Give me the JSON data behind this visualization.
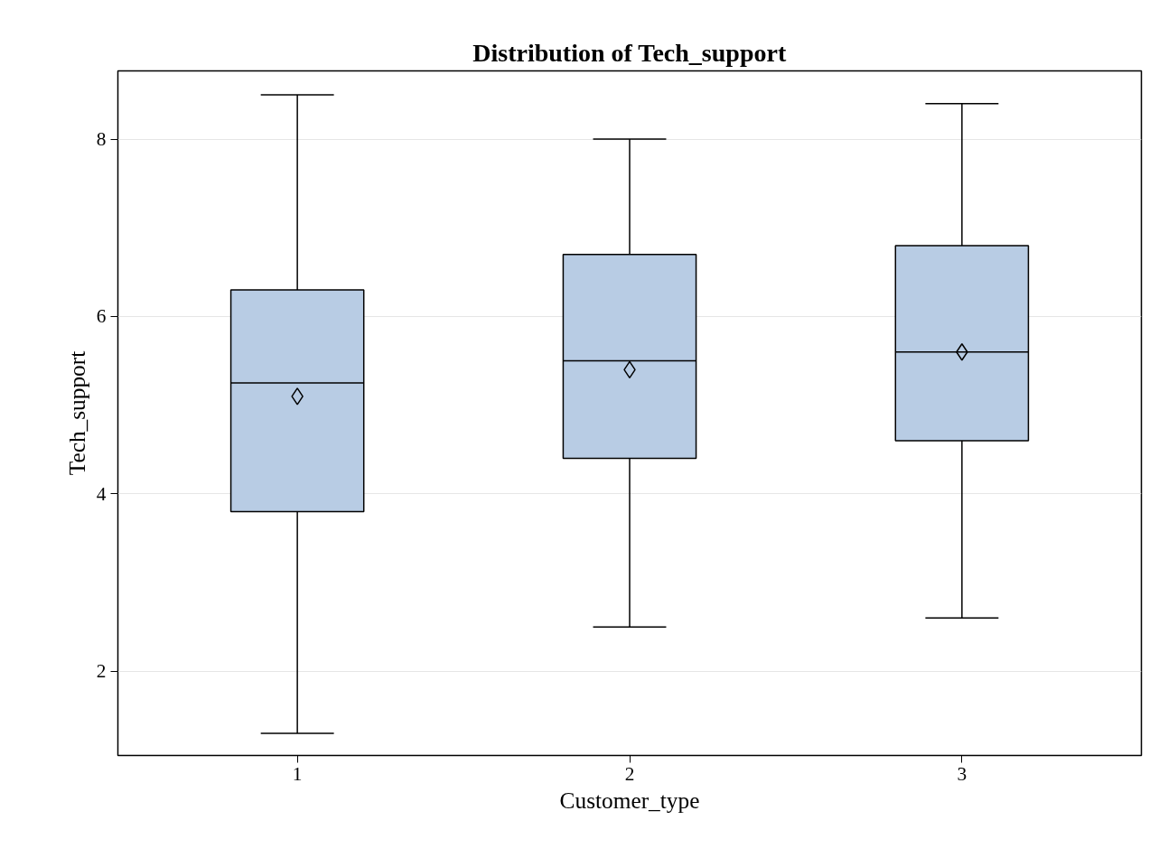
{
  "chart_data": {
    "type": "box",
    "title": "Distribution of Tech_support",
    "xlabel": "Customer_type",
    "ylabel": "Tech_support",
    "categories": [
      "1",
      "2",
      "3"
    ],
    "series": [
      {
        "color": "#b8cce4",
        "boxes": [
          {
            "low": 1.3,
            "q1": 3.8,
            "median": 5.25,
            "q3": 6.3,
            "high": 8.5,
            "mean": 5.1
          },
          {
            "low": 2.5,
            "q1": 4.4,
            "median": 5.5,
            "q3": 6.7,
            "high": 8.0,
            "mean": 5.4
          },
          {
            "low": 2.6,
            "q1": 4.6,
            "median": 5.6,
            "q3": 6.8,
            "high": 8.4,
            "mean": 5.6
          }
        ]
      }
    ],
    "ylim": [
      1.05,
      8.77
    ],
    "yticks": [
      2,
      4,
      6,
      8
    ],
    "grid": "y",
    "marker": "diamond"
  }
}
